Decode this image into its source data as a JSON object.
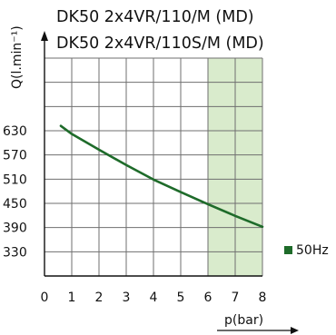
{
  "chart_data": {
    "type": "line",
    "title_lines": [
      "DK50 2x4VR/110/M (MD)",
      "DK50 2x4VR/110S/M (MD)"
    ],
    "xlabel": "p(bar)",
    "ylabel": "Q(l.min⁻¹)",
    "xlim": [
      0,
      8
    ],
    "ylim": [
      270,
      810
    ],
    "x_ticks": [
      0,
      1,
      2,
      3,
      4,
      5,
      6,
      7,
      8
    ],
    "y_ticks": [
      330,
      390,
      450,
      510,
      570,
      630
    ],
    "grid": true,
    "legend_position": "right",
    "shaded_region": {
      "x_from": 6,
      "x_to": 8,
      "color": "#d9ebcc"
    },
    "series": [
      {
        "name": "50Hz",
        "color": "#1e6b2a",
        "x": [
          0.6,
          1,
          2,
          3,
          4,
          5,
          6,
          7,
          8
        ],
        "y": [
          642,
          622,
          583,
          545,
          509,
          478,
          448,
          419,
          392
        ]
      }
    ]
  }
}
